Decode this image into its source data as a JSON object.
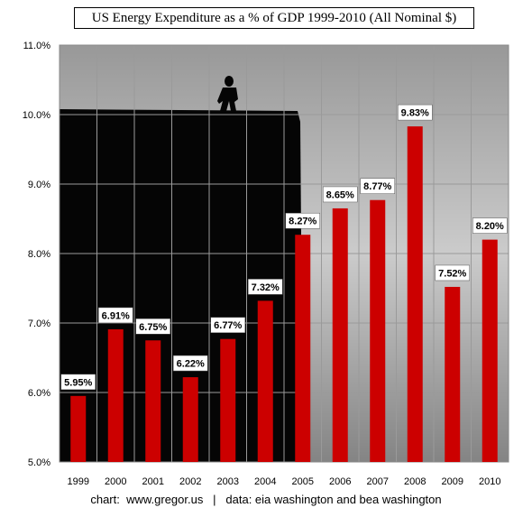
{
  "chart_data": {
    "type": "bar",
    "title": "US Energy Expenditure as a % of GDP 1999-2010 (All Nominal $)",
    "categories": [
      "1999",
      "2000",
      "2001",
      "2002",
      "2003",
      "2004",
      "2005",
      "2006",
      "2007",
      "2008",
      "2009",
      "2010"
    ],
    "values": [
      5.95,
      6.91,
      6.75,
      6.22,
      6.77,
      7.32,
      8.27,
      8.65,
      8.77,
      9.83,
      7.52,
      8.2
    ],
    "data_labels": [
      "5.95%",
      "6.91%",
      "6.75%",
      "6.22%",
      "6.77%",
      "7.32%",
      "8.27%",
      "8.65%",
      "8.77%",
      "9.83%",
      "7.52%",
      "8.20%"
    ],
    "ylim": [
      5.0,
      11.0
    ],
    "yticks": [
      5.0,
      6.0,
      7.0,
      8.0,
      9.0,
      10.0,
      11.0
    ],
    "ytick_labels": [
      "5.0%",
      "6.0%",
      "7.0%",
      "8.0%",
      "9.0%",
      "10.0%",
      "11.0%"
    ],
    "xlabel": "",
    "ylabel": "",
    "grid": true,
    "bar_color": "#cc0000",
    "background": "cloudy sky photo with dark building silhouette"
  },
  "footer": {
    "credit": "chart:  www.gregor.us   |   data: eia washington and bea washington"
  }
}
